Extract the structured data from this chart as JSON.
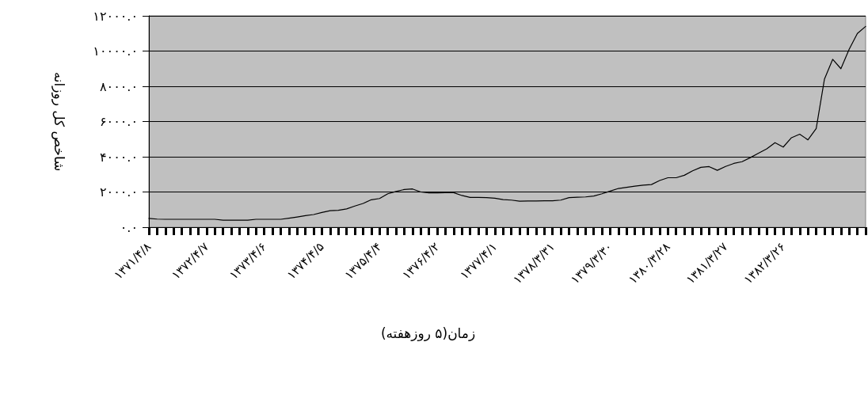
{
  "chart_data": {
    "type": "line",
    "xlabel": "زمان(۵ روزهفته)",
    "ylabel": "شاخص کل روزانه",
    "categories": [
      "۱۳۷۱/۴/۸",
      null,
      null,
      null,
      null,
      null,
      null,
      "۱۳۷۲/۴/۷",
      null,
      null,
      null,
      null,
      null,
      null,
      "۱۳۷۳/۴/۶",
      null,
      null,
      null,
      null,
      null,
      null,
      "۱۳۷۴/۴/۵",
      null,
      null,
      null,
      null,
      null,
      null,
      "۱۳۷۵/۴/۴",
      null,
      null,
      null,
      null,
      null,
      null,
      "۱۳۷۶/۴/۲",
      null,
      null,
      null,
      null,
      null,
      null,
      "۱۳۷۷/۴/۱",
      null,
      null,
      null,
      null,
      null,
      null,
      "۱۳۷۸/۳/۳۱",
      null,
      null,
      null,
      null,
      null,
      null,
      "۱۳۷۹/۳/۳۰",
      null,
      null,
      null,
      null,
      null,
      null,
      "۱۳۸۰/۳/۲۸",
      null,
      null,
      null,
      null,
      null,
      null,
      "۱۳۸۱/۳/۲۷",
      null,
      null,
      null,
      null,
      null,
      null,
      "۱۳۸۲/۳/۲۶",
      null,
      null,
      null,
      null,
      null,
      null,
      null,
      null,
      null,
      null
    ],
    "series": [
      {
        "color": "#000000",
        "values": [
          500,
          460,
          450,
          450,
          450,
          450,
          450,
          450,
          450,
          400,
          400,
          400,
          400,
          450,
          450,
          450,
          450,
          510,
          580,
          660,
          720,
          840,
          940,
          960,
          1040,
          1200,
          1350,
          1560,
          1630,
          1900,
          2030,
          2140,
          2170,
          2000,
          1950,
          1950,
          1960,
          1960,
          1800,
          1690,
          1690,
          1680,
          1650,
          1570,
          1540,
          1480,
          1490,
          1490,
          1500,
          1500,
          1540,
          1680,
          1700,
          1720,
          1770,
          1900,
          2050,
          2200,
          2260,
          2330,
          2390,
          2420,
          2650,
          2810,
          2810,
          2950,
          3200,
          3400,
          3440,
          3230,
          3450,
          3620,
          3720,
          3950,
          4200,
          4450,
          4800,
          4550,
          5080,
          5280,
          4960,
          5600,
          8400,
          9530,
          9000,
          10100,
          11000,
          11400
        ]
      }
    ],
    "ylim": [
      0,
      12000
    ],
    "yticks": [
      {
        "value": 0,
        "label": "۰.۰"
      },
      {
        "value": 2000,
        "label": "۲۰۰۰.۰"
      },
      {
        "value": 4000,
        "label": "۴۰۰۰.۰"
      },
      {
        "value": 6000,
        "label": "۶۰۰۰.۰"
      },
      {
        "value": 8000,
        "label": "۸۰۰۰.۰"
      },
      {
        "value": 10000,
        "label": "۱۰۰۰۰.۰"
      },
      {
        "value": 12000,
        "label": "۱۲۰۰۰.۰"
      }
    ],
    "grid": "y",
    "marker": "none",
    "line_style": "solid"
  }
}
